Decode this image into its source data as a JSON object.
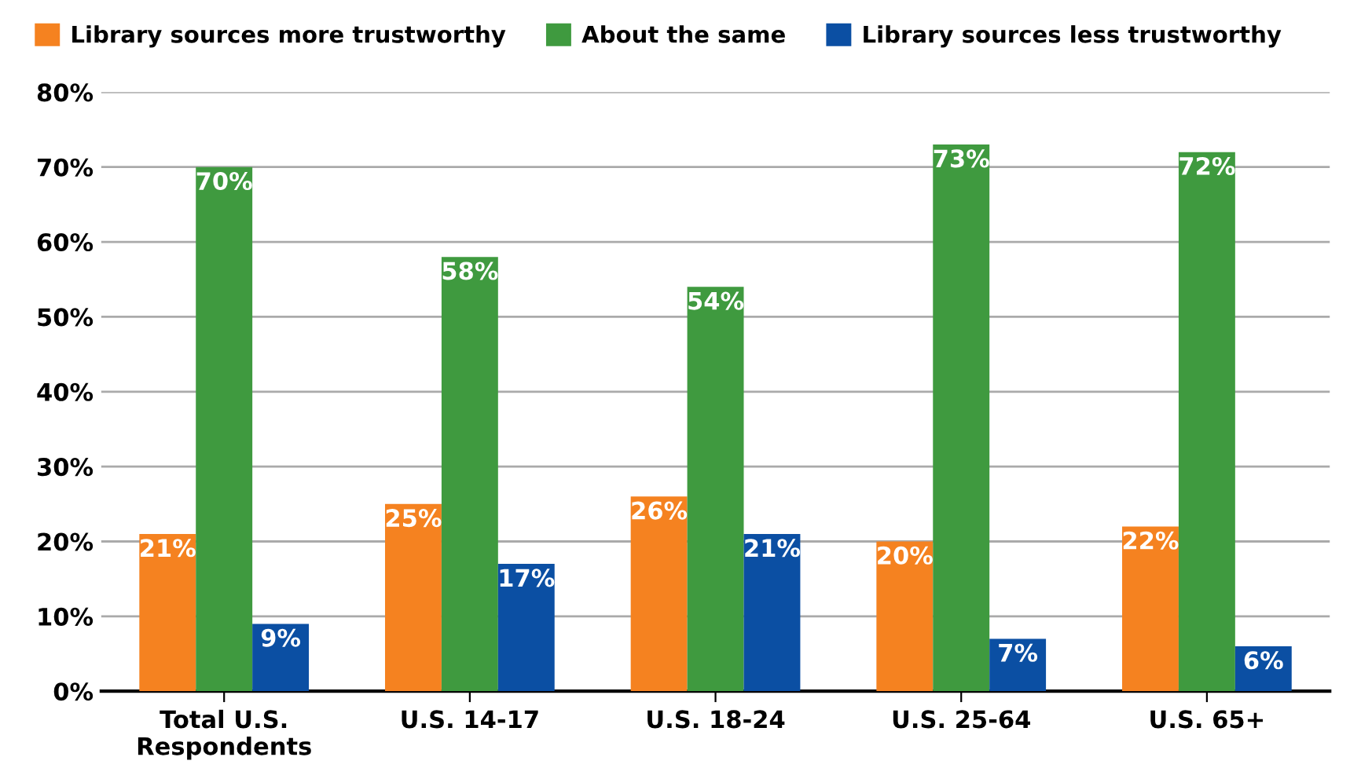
{
  "chart_data": {
    "type": "bar",
    "categories": [
      "Total U.S.\nRespondents",
      "U.S. 14-17",
      "U.S. 18-24",
      "U.S. 25-64",
      "U.S. 65+"
    ],
    "series": [
      {
        "name": "Library sources more trustworthy",
        "color": "#f58220",
        "values": [
          21,
          25,
          26,
          20,
          22
        ],
        "value_labels": [
          "21%",
          "25%",
          "26%",
          "20%",
          "22%"
        ]
      },
      {
        "name": "About the same",
        "color": "#3f9a3f",
        "values": [
          70,
          58,
          54,
          73,
          72
        ],
        "value_labels": [
          "70%",
          "58%",
          "54%",
          "73%",
          "72%"
        ]
      },
      {
        "name": "Library sources less trustworthy",
        "color": "#0b4fa3",
        "values": [
          9,
          17,
          21,
          7,
          6
        ],
        "value_labels": [
          "9%",
          "17%",
          "21%",
          "7%",
          "6%"
        ]
      }
    ],
    "ylim": [
      0,
      80
    ],
    "yticks": [
      {
        "value": 0,
        "label": "0%"
      },
      {
        "value": 10,
        "label": "10%"
      },
      {
        "value": 20,
        "label": "20%"
      },
      {
        "value": 30,
        "label": "30%"
      },
      {
        "value": 40,
        "label": "40%"
      },
      {
        "value": 50,
        "label": "50%"
      },
      {
        "value": 60,
        "label": "60%"
      },
      {
        "value": 70,
        "label": "70%"
      },
      {
        "value": 80,
        "label": "80%"
      }
    ],
    "grid": "y",
    "legend": "top"
  }
}
